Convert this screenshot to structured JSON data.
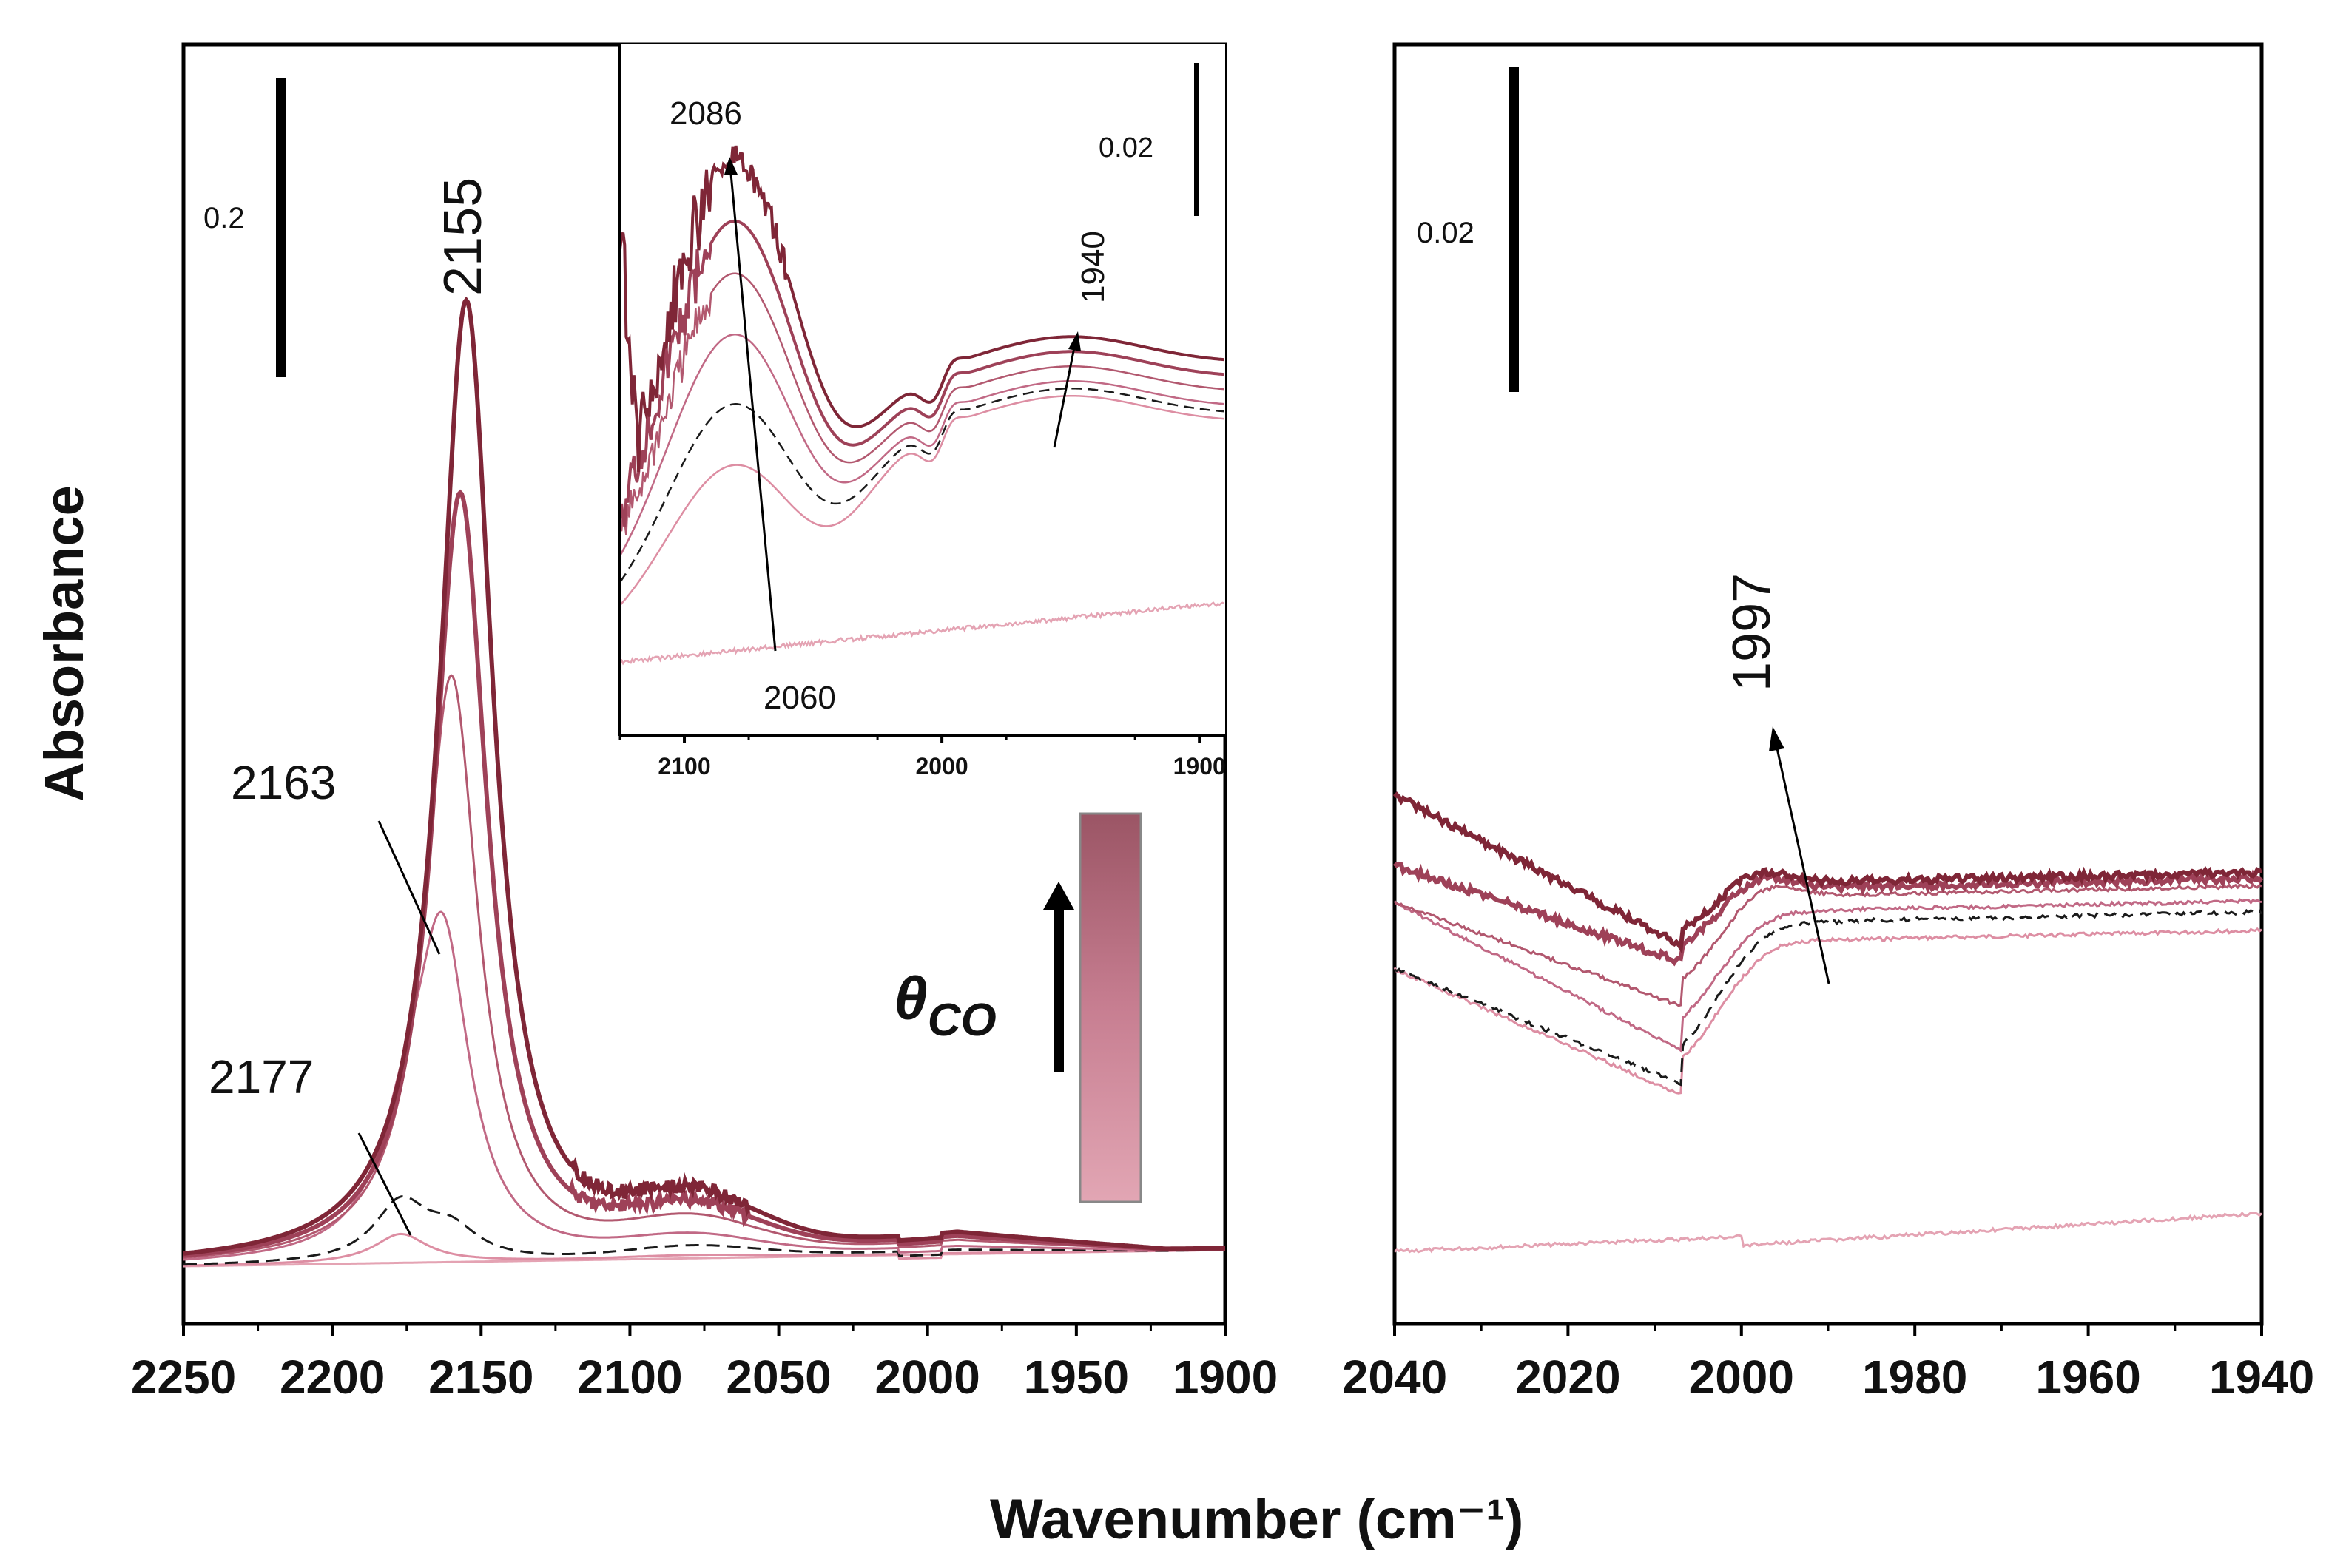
{
  "chart_data": [
    {
      "id": "main",
      "type": "line",
      "title": "",
      "xlabel": "Wavenumber (cm⁻¹)",
      "ylabel": "Absorbance",
      "xlim": [
        2250,
        1900
      ],
      "x_reversed": true,
      "xticks": [
        "2250",
        "2200",
        "2150",
        "2100",
        "2050",
        "2000",
        "1950",
        "1900"
      ],
      "scale_bar": {
        "label": "0.2",
        "value": 0.2
      },
      "peak_labels": [
        "2155",
        "2163",
        "2177"
      ],
      "colorbar": {
        "label": "θ",
        "subscript": "CO",
        "from": "#e0a0b0",
        "to": "#7a2a3a"
      },
      "series_note": "spectra with increasing CO coverage (light to dark); dashed = intermediate spectrum",
      "series": [
        {
          "name": "s0",
          "color": "#e4a3b3",
          "dash": false,
          "peaks": []
        },
        {
          "name": "s1",
          "color": "#dd8ea3",
          "dash": false,
          "peaks": [
            [
              2177,
              0.03
            ],
            [
              2163,
              0.0
            ]
          ]
        },
        {
          "name": "s2",
          "color": "#c9758d",
          "dash": true,
          "peaks": [
            [
              2177,
              0.06
            ],
            [
              2160,
              0.03
            ]
          ]
        },
        {
          "name": "s3",
          "color": "#c16985",
          "dash": false,
          "peaks": [
            [
              2163,
              0.33
            ],
            [
              2176,
              0.08
            ]
          ]
        },
        {
          "name": "s4",
          "color": "#b2586f",
          "dash": false,
          "peaks": [
            [
              2160,
              0.61
            ]
          ]
        },
        {
          "name": "s5",
          "color": "#9e4158",
          "dash": false,
          "peaks": [
            [
              2157,
              0.8
            ]
          ]
        },
        {
          "name": "s6",
          "color": "#7f2637",
          "dash": false,
          "peaks": [
            [
              2155,
              1.0
            ]
          ]
        }
      ]
    },
    {
      "id": "inset",
      "type": "line",
      "xlim": [
        2125,
        1890
      ],
      "x_reversed": true,
      "xticks": [
        "2100",
        "2000",
        "1900"
      ],
      "scale_bar": {
        "label": "0.02",
        "value": 0.02
      },
      "peak_labels": [
        "2086",
        "2060",
        "1940"
      ]
    },
    {
      "id": "right",
      "type": "line",
      "xlim": [
        2040,
        1940
      ],
      "x_reversed": true,
      "xticks": [
        "2040",
        "2020",
        "2000",
        "1980",
        "1960",
        "1940"
      ],
      "scale_bar": {
        "label": "0.02",
        "value": 0.02
      },
      "peak_labels": [
        "1997"
      ]
    }
  ]
}
